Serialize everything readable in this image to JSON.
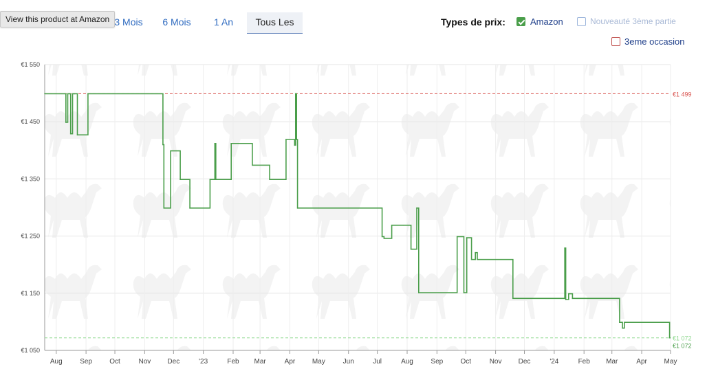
{
  "tooltip": "View this product at Amazon",
  "ranges": [
    {
      "label": "3 Mois",
      "active": false
    },
    {
      "label": "6 Mois",
      "active": false
    },
    {
      "label": "1 An",
      "active": false
    },
    {
      "label": "Tous Les",
      "active": true
    }
  ],
  "price_types": {
    "label": "Types de prix:",
    "options": [
      {
        "label": "Amazon",
        "checked": true
      },
      {
        "label": "Nouveauté 3ème partie",
        "checked": false
      },
      {
        "label": "3eme occasion",
        "checked": false
      }
    ]
  },
  "colors": {
    "amazon": "#4a9e4a",
    "max": "#d9534f",
    "min": "#8fd88f",
    "link": "#2f6bc0"
  },
  "chart_data": {
    "type": "line",
    "xlabel": "",
    "ylabel": "",
    "ylim": [
      1050,
      1550
    ],
    "xlim": [
      "2022-07-20",
      "2024-05-01"
    ],
    "yticks": [
      {
        "label": "€1 550",
        "value": 1550
      },
      {
        "label": "€1 450",
        "value": 1450
      },
      {
        "label": "€1 350",
        "value": 1350
      },
      {
        "label": "€1 250",
        "value": 1250
      },
      {
        "label": "€1 150",
        "value": 1150
      },
      {
        "label": "€1 050",
        "value": 1050
      }
    ],
    "xticks": [
      {
        "label": "Aug",
        "date": "2022-08-01"
      },
      {
        "label": "Sep",
        "date": "2022-09-01"
      },
      {
        "label": "Oct",
        "date": "2022-10-01"
      },
      {
        "label": "Nov",
        "date": "2022-11-01"
      },
      {
        "label": "Dec",
        "date": "2022-12-01"
      },
      {
        "label": "'23",
        "date": "2023-01-01"
      },
      {
        "label": "Feb",
        "date": "2023-02-01"
      },
      {
        "label": "Mar",
        "date": "2023-03-01"
      },
      {
        "label": "Apr",
        "date": "2023-04-01"
      },
      {
        "label": "May",
        "date": "2023-05-01"
      },
      {
        "label": "Jun",
        "date": "2023-06-01"
      },
      {
        "label": "Jul",
        "date": "2023-07-01"
      },
      {
        "label": "Aug",
        "date": "2023-08-01"
      },
      {
        "label": "Sep",
        "date": "2023-09-01"
      },
      {
        "label": "Oct",
        "date": "2023-10-01"
      },
      {
        "label": "Nov",
        "date": "2023-11-01"
      },
      {
        "label": "Dec",
        "date": "2023-12-01"
      },
      {
        "label": "'24",
        "date": "2024-01-01"
      },
      {
        "label": "Feb",
        "date": "2024-02-01"
      },
      {
        "label": "Mar",
        "date": "2024-03-01"
      },
      {
        "label": "Apr",
        "date": "2024-04-01"
      },
      {
        "label": "May",
        "date": "2024-05-01"
      }
    ],
    "reference_lines": [
      {
        "value": 1499,
        "label": "€1 499",
        "kind": "max"
      },
      {
        "value": 1072,
        "label": "€1 072",
        "kind": "min"
      }
    ],
    "last_price_label": "€1 072",
    "series": [
      {
        "name": "Amazon",
        "step": true,
        "points": [
          [
            "2022-07-20",
            1499
          ],
          [
            "2022-08-11",
            1449
          ],
          [
            "2022-08-13",
            1499
          ],
          [
            "2022-08-15",
            1499
          ],
          [
            "2022-08-16",
            1429
          ],
          [
            "2022-08-18",
            1499
          ],
          [
            "2022-08-19",
            1499
          ],
          [
            "2022-08-20",
            1499
          ],
          [
            "2022-08-23",
            1427
          ],
          [
            "2022-09-03",
            1499
          ],
          [
            "2022-11-20",
            1410
          ],
          [
            "2022-11-21",
            1299
          ],
          [
            "2022-11-28",
            1399
          ],
          [
            "2022-12-08",
            1349
          ],
          [
            "2022-12-18",
            1299
          ],
          [
            "2023-01-08",
            1349
          ],
          [
            "2023-01-13",
            1412
          ],
          [
            "2023-01-14",
            1349
          ],
          [
            "2023-01-30",
            1412
          ],
          [
            "2023-02-21",
            1374
          ],
          [
            "2023-03-11",
            1349
          ],
          [
            "2023-03-28",
            1419
          ],
          [
            "2023-04-06",
            1409
          ],
          [
            "2023-04-07",
            1499
          ],
          [
            "2023-04-08",
            1419
          ],
          [
            "2023-04-09",
            1299
          ],
          [
            "2023-07-06",
            1249
          ],
          [
            "2023-07-08",
            1246
          ],
          [
            "2023-07-16",
            1269
          ],
          [
            "2023-07-28",
            1269
          ],
          [
            "2023-08-05",
            1227
          ],
          [
            "2023-08-11",
            1299
          ],
          [
            "2023-08-13",
            1151
          ],
          [
            "2023-09-22",
            1249
          ],
          [
            "2023-09-29",
            1151
          ],
          [
            "2023-10-02",
            1247
          ],
          [
            "2023-10-07",
            1209
          ],
          [
            "2023-10-11",
            1221
          ],
          [
            "2023-10-13",
            1209
          ],
          [
            "2023-11-19",
            1141
          ],
          [
            "2024-01-12",
            1229
          ],
          [
            "2024-01-13",
            1139
          ],
          [
            "2024-01-16",
            1149
          ],
          [
            "2024-01-20",
            1141
          ],
          [
            "2024-03-09",
            1099
          ],
          [
            "2024-03-12",
            1089
          ],
          [
            "2024-03-14",
            1099
          ],
          [
            "2024-04-30",
            1072
          ]
        ]
      }
    ]
  }
}
